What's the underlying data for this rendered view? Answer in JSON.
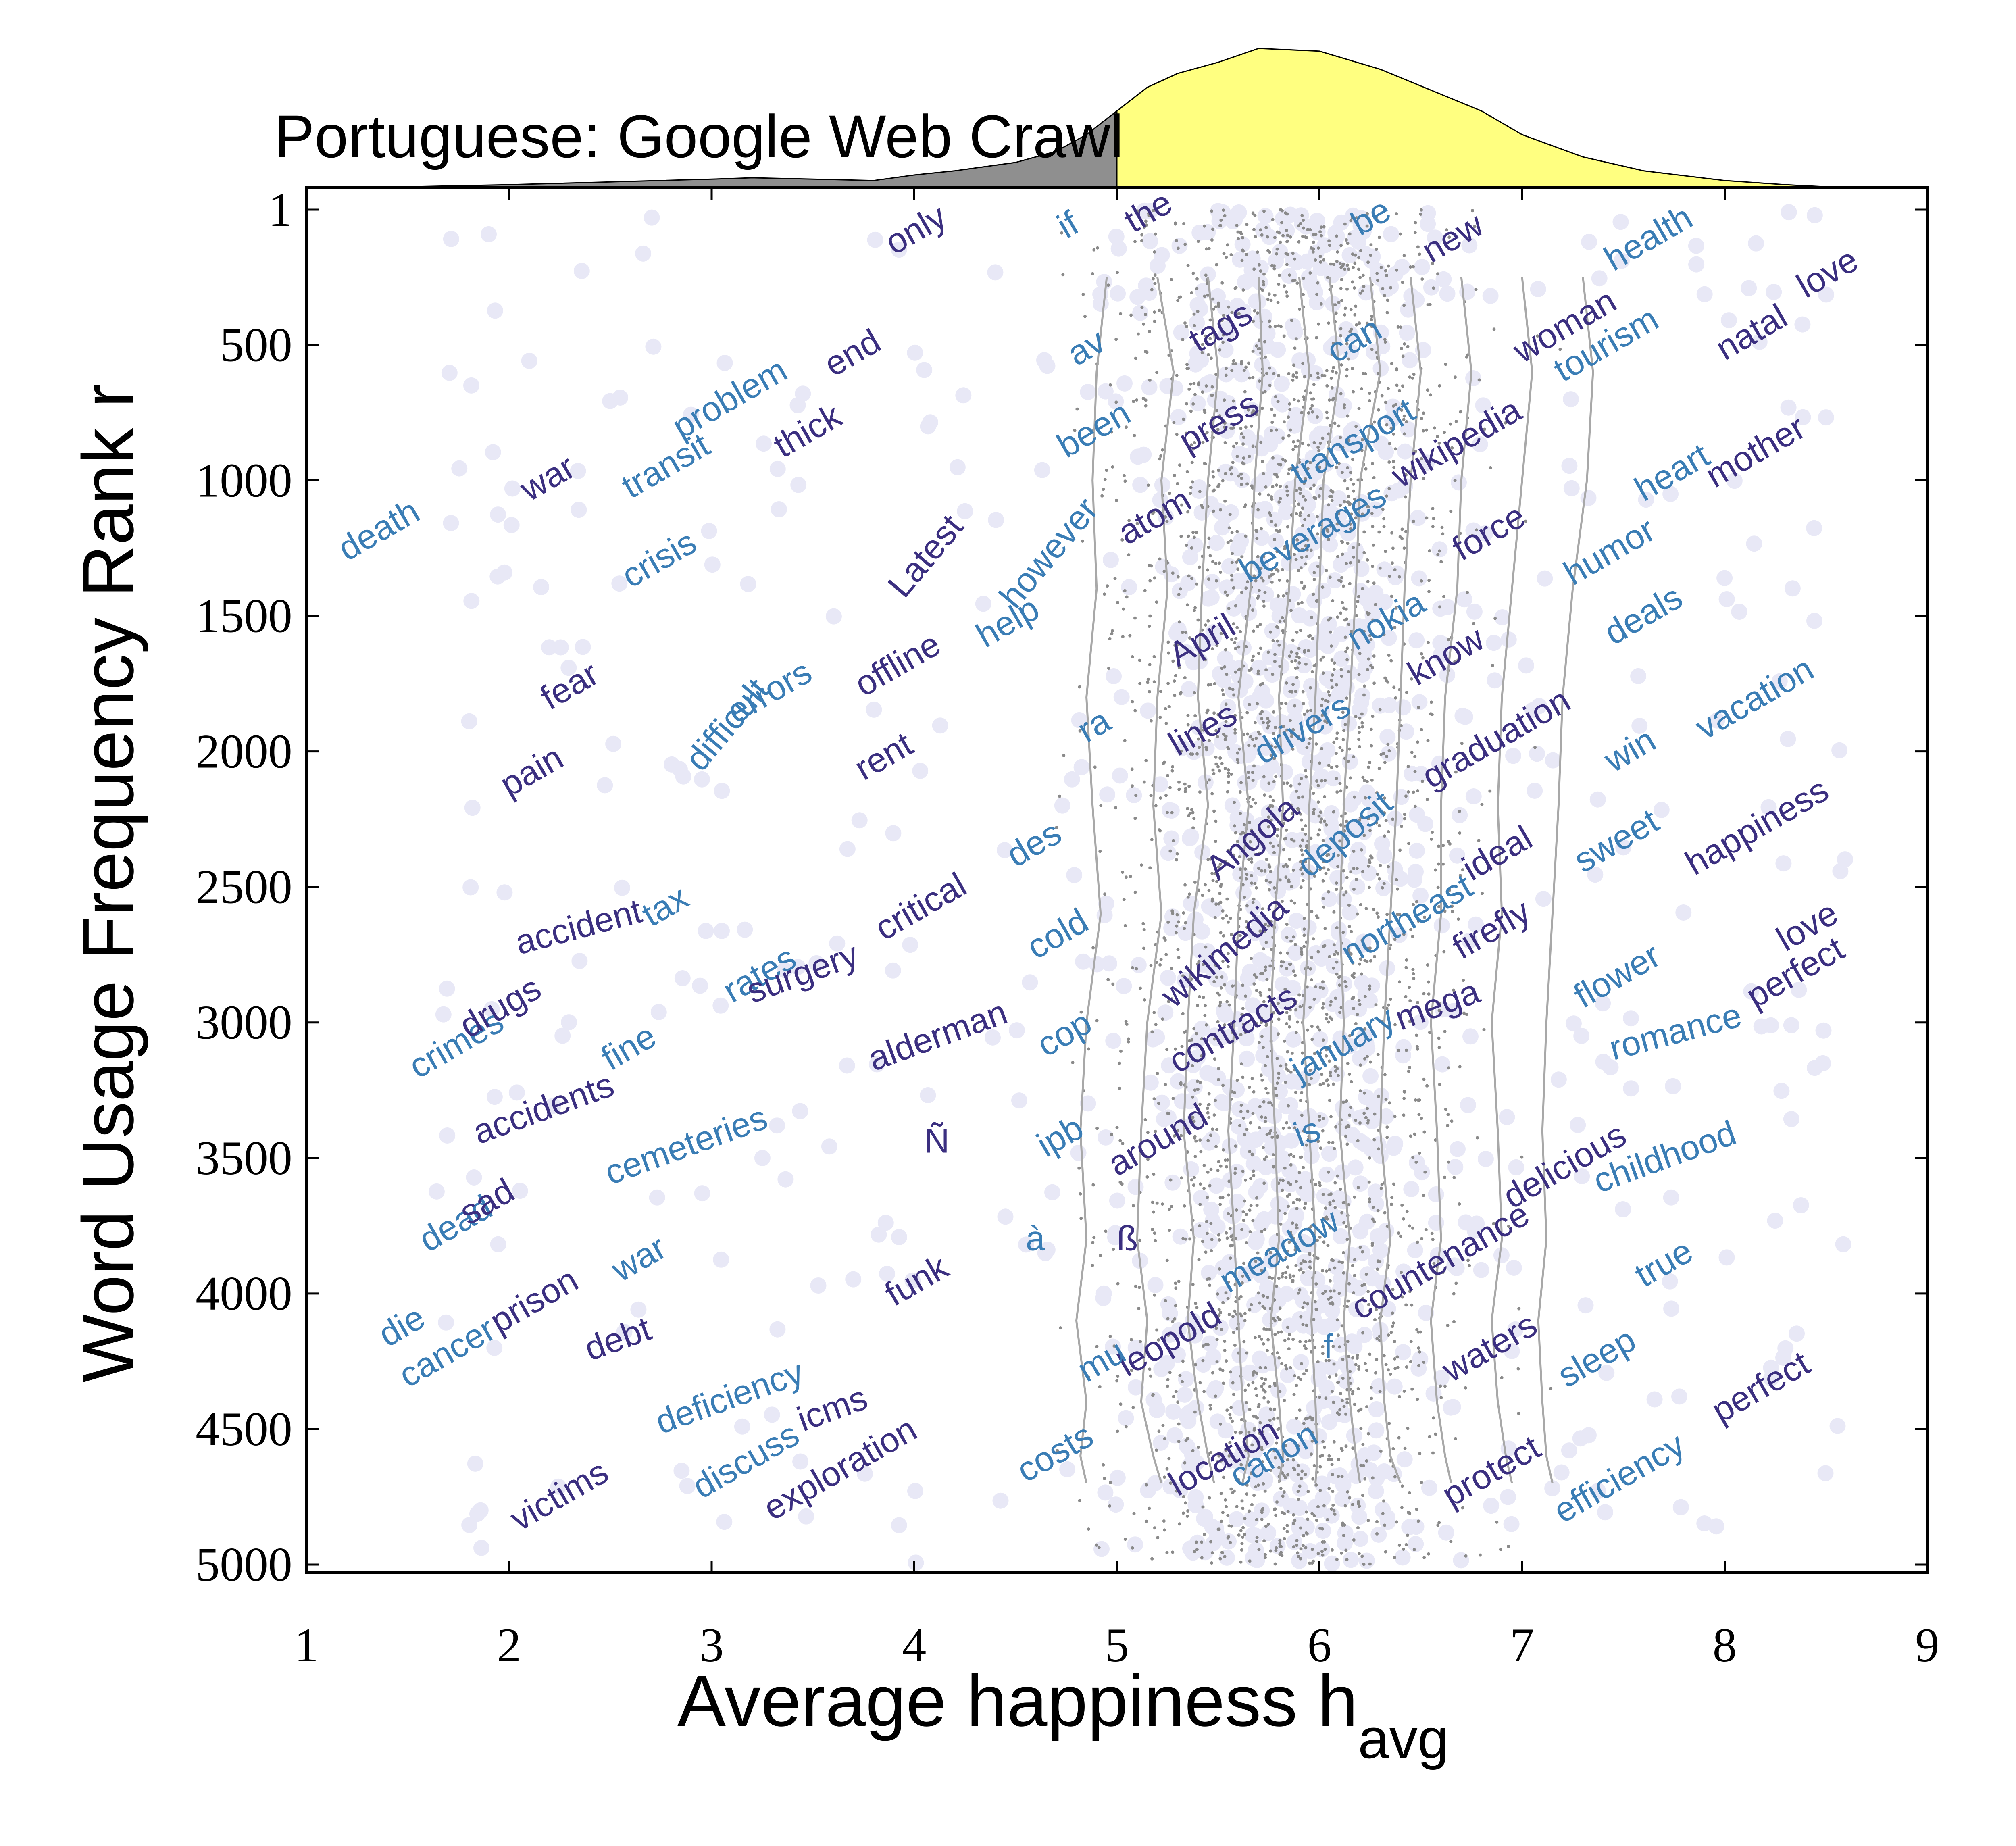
{
  "chart_data": {
    "type": "scatter",
    "title": "Portuguese: Google Web Crawl",
    "xlabel": "Average happiness h",
    "xlabel_sub": "avg",
    "ylabel": "Word Usage Frequency Rank r",
    "xlim": [
      1,
      9
    ],
    "ylim": [
      5000,
      1
    ],
    "x_ticks": [
      1,
      2,
      3,
      4,
      5,
      6,
      7,
      8,
      9
    ],
    "y_ticks": [
      1,
      500,
      1000,
      1500,
      2000,
      2500,
      3000,
      3500,
      4000,
      4500,
      5000
    ],
    "grid": false,
    "colors": {
      "dot": "#e8e8f6",
      "speck": "#8a8a8a",
      "contour": "#a8a8a8",
      "word_dark": "#3b2f80",
      "word_light": "#3a7db5",
      "hist_negative": "#8f8f8f",
      "hist_positive": "#ffff80"
    },
    "histogram": {
      "split_at": 5,
      "x": [
        1,
        1.5,
        2,
        2.5,
        3,
        3.2,
        3.5,
        3.8,
        4,
        4.2,
        4.5,
        4.7,
        4.85,
        5,
        5.15,
        5.3,
        5.5,
        5.7,
        6,
        6.3,
        6.5,
        6.8,
        7,
        7.3,
        7.6,
        8,
        8.3,
        8.5,
        9
      ],
      "density": [
        0,
        0.005,
        0.02,
        0.04,
        0.06,
        0.07,
        0.06,
        0.05,
        0.09,
        0.12,
        0.18,
        0.26,
        0.38,
        0.55,
        0.72,
        0.82,
        0.9,
        1.0,
        0.98,
        0.85,
        0.73,
        0.55,
        0.38,
        0.22,
        0.12,
        0.05,
        0.02,
        0.005,
        0
      ]
    },
    "contours_x": [
      [
        4.95,
        4.9,
        4.88,
        4.9,
        4.85,
        4.88,
        4.92,
        4.85,
        4.82,
        4.85,
        4.8,
        4.85,
        4.82,
        4.85
      ],
      [
        5.2,
        5.28,
        5.22,
        5.25,
        5.2,
        5.18,
        5.22,
        5.15,
        5.12,
        5.1,
        5.15,
        5.12,
        5.18,
        5.22
      ],
      [
        5.45,
        5.5,
        5.45,
        5.42,
        5.4,
        5.45,
        5.38,
        5.35,
        5.33,
        5.38,
        5.35,
        5.4,
        5.45,
        5.48
      ],
      [
        5.7,
        5.72,
        5.68,
        5.66,
        5.6,
        5.65,
        5.6,
        5.58,
        5.55,
        5.58,
        5.6,
        5.62,
        5.65,
        5.62
      ],
      [
        5.9,
        5.95,
        5.88,
        5.85,
        5.8,
        5.82,
        5.78,
        5.76,
        5.78,
        5.8,
        5.76,
        5.8,
        5.82,
        5.8
      ],
      [
        6.05,
        6.1,
        6.02,
        6.0,
        5.98,
        5.95,
        5.95,
        5.92,
        5.95,
        5.98,
        5.96,
        5.98,
        5.99,
        5.98
      ],
      [
        6.25,
        6.3,
        6.2,
        6.18,
        6.15,
        6.12,
        6.1,
        6.12,
        6.1,
        6.15,
        6.12,
        6.15,
        6.18,
        6.2
      ],
      [
        6.45,
        6.5,
        6.45,
        6.42,
        6.4,
        6.38,
        6.35,
        6.32,
        6.3,
        6.35,
        6.3,
        6.32,
        6.35,
        6.4
      ],
      [
        6.7,
        6.75,
        6.7,
        6.68,
        6.62,
        6.6,
        6.6,
        6.55,
        6.58,
        6.6,
        6.55,
        6.58,
        6.62,
        6.65
      ],
      [
        7.0,
        7.05,
        7.0,
        6.95,
        6.9,
        6.88,
        6.9,
        6.85,
        6.88,
        6.9,
        6.85,
        6.88,
        6.92,
        6.95
      ],
      [
        7.3,
        7.35,
        7.32,
        7.25,
        7.2,
        7.18,
        7.15,
        7.12,
        7.1,
        7.12,
        7.08,
        7.1,
        7.12,
        7.15
      ]
    ],
    "contour_ranks": [
      250,
      600,
      1000,
      1400,
      1800,
      2200,
      2600,
      3000,
      3400,
      3800,
      4100,
      4400,
      4600,
      4700
    ],
    "words": [
      {
        "text": "death",
        "x": 1.2,
        "y": 1300,
        "angle": -30,
        "tone": "light"
      },
      {
        "text": "war",
        "x": 2.1,
        "y": 1080,
        "angle": -30,
        "tone": "dark"
      },
      {
        "text": "transit",
        "x": 2.6,
        "y": 1070,
        "angle": -30,
        "tone": "light"
      },
      {
        "text": "problem",
        "x": 2.85,
        "y": 850,
        "angle": -30,
        "tone": "light"
      },
      {
        "text": "thick",
        "x": 3.35,
        "y": 920,
        "angle": -30,
        "tone": "dark"
      },
      {
        "text": "end",
        "x": 3.6,
        "y": 620,
        "angle": -30,
        "tone": "dark"
      },
      {
        "text": "only",
        "x": 3.9,
        "y": 170,
        "angle": -30,
        "tone": "dark"
      },
      {
        "text": "if",
        "x": 4.75,
        "y": 110,
        "angle": -30,
        "tone": "light"
      },
      {
        "text": "the",
        "x": 5.08,
        "y": 90,
        "angle": -30,
        "tone": "dark"
      },
      {
        "text": "be",
        "x": 6.2,
        "y": 100,
        "angle": -30,
        "tone": "light"
      },
      {
        "text": "new",
        "x": 6.55,
        "y": 200,
        "angle": -30,
        "tone": "dark"
      },
      {
        "text": "health",
        "x": 7.45,
        "y": 230,
        "angle": -30,
        "tone": "light"
      },
      {
        "text": "love",
        "x": 8.4,
        "y": 330,
        "angle": -30,
        "tone": "dark"
      },
      {
        "text": "natal",
        "x": 8.0,
        "y": 560,
        "angle": -30,
        "tone": "dark"
      },
      {
        "text": "crisis",
        "x": 2.6,
        "y": 1400,
        "angle": -30,
        "tone": "light"
      },
      {
        "text": "av",
        "x": 4.8,
        "y": 580,
        "angle": -30,
        "tone": "light"
      },
      {
        "text": "tags",
        "x": 5.4,
        "y": 530,
        "angle": -30,
        "tone": "dark"
      },
      {
        "text": "can",
        "x": 6.08,
        "y": 570,
        "angle": -30,
        "tone": "light"
      },
      {
        "text": "woman",
        "x": 7.0,
        "y": 570,
        "angle": -30,
        "tone": "dark"
      },
      {
        "text": "tourism",
        "x": 7.2,
        "y": 640,
        "angle": -30,
        "tone": "light"
      },
      {
        "text": "been",
        "x": 4.75,
        "y": 920,
        "angle": -30,
        "tone": "light"
      },
      {
        "text": "press",
        "x": 5.35,
        "y": 900,
        "angle": -30,
        "tone": "dark"
      },
      {
        "text": "transport",
        "x": 5.9,
        "y": 1020,
        "angle": -30,
        "tone": "light"
      },
      {
        "text": "wikipedia",
        "x": 6.4,
        "y": 1030,
        "angle": -30,
        "tone": "dark"
      },
      {
        "text": "mother",
        "x": 7.95,
        "y": 1030,
        "angle": -30,
        "tone": "dark"
      },
      {
        "text": "heart",
        "x": 7.6,
        "y": 1080,
        "angle": -30,
        "tone": "light"
      },
      {
        "text": "Latest",
        "x": 3.95,
        "y": 1440,
        "angle": -50,
        "tone": "dark"
      },
      {
        "text": "however",
        "x": 4.5,
        "y": 1480,
        "angle": -50,
        "tone": "light"
      },
      {
        "text": "atom",
        "x": 5.05,
        "y": 1240,
        "angle": -30,
        "tone": "dark"
      },
      {
        "text": "beverages",
        "x": 5.65,
        "y": 1380,
        "angle": -30,
        "tone": "light"
      },
      {
        "text": "force",
        "x": 6.7,
        "y": 1300,
        "angle": -30,
        "tone": "dark"
      },
      {
        "text": "humor",
        "x": 7.25,
        "y": 1390,
        "angle": -30,
        "tone": "light"
      },
      {
        "text": "fear",
        "x": 2.2,
        "y": 1850,
        "angle": -30,
        "tone": "dark"
      },
      {
        "text": "offline",
        "x": 3.75,
        "y": 1800,
        "angle": -30,
        "tone": "dark"
      },
      {
        "text": "help",
        "x": 4.35,
        "y": 1620,
        "angle": -30,
        "tone": "light"
      },
      {
        "text": "April",
        "x": 5.3,
        "y": 1690,
        "angle": -30,
        "tone": "dark"
      },
      {
        "text": "nokia",
        "x": 6.18,
        "y": 1630,
        "angle": -30,
        "tone": "light"
      },
      {
        "text": "know",
        "x": 6.48,
        "y": 1760,
        "angle": -30,
        "tone": "dark"
      },
      {
        "text": "deals",
        "x": 7.45,
        "y": 1610,
        "angle": -30,
        "tone": "light"
      },
      {
        "text": "vacation",
        "x": 7.9,
        "y": 1960,
        "angle": -30,
        "tone": "light"
      },
      {
        "text": "pain",
        "x": 2.0,
        "y": 2170,
        "angle": -30,
        "tone": "dark"
      },
      {
        "text": "difficult",
        "x": 2.95,
        "y": 2080,
        "angle": -50,
        "tone": "light"
      },
      {
        "text": "errors",
        "x": 3.12,
        "y": 1900,
        "angle": -30,
        "tone": "light"
      },
      {
        "text": "rent",
        "x": 3.75,
        "y": 2110,
        "angle": -30,
        "tone": "dark"
      },
      {
        "text": "ra",
        "x": 4.85,
        "y": 1970,
        "angle": -30,
        "tone": "light"
      },
      {
        "text": "lines",
        "x": 5.3,
        "y": 2020,
        "angle": -30,
        "tone": "dark"
      },
      {
        "text": "drivers",
        "x": 5.72,
        "y": 2050,
        "angle": -30,
        "tone": "light"
      },
      {
        "text": "graduation",
        "x": 6.55,
        "y": 2140,
        "angle": -30,
        "tone": "dark"
      },
      {
        "text": "win",
        "x": 7.45,
        "y": 2080,
        "angle": -30,
        "tone": "light"
      },
      {
        "text": "happiness",
        "x": 7.85,
        "y": 2460,
        "angle": -30,
        "tone": "dark"
      },
      {
        "text": "des",
        "x": 4.5,
        "y": 2430,
        "angle": -30,
        "tone": "light"
      },
      {
        "text": "Angola",
        "x": 5.5,
        "y": 2480,
        "angle": -40,
        "tone": "dark"
      },
      {
        "text": "deposit",
        "x": 5.95,
        "y": 2470,
        "angle": -40,
        "tone": "light"
      },
      {
        "text": "ideal",
        "x": 6.75,
        "y": 2480,
        "angle": -30,
        "tone": "dark"
      },
      {
        "text": "sweet",
        "x": 7.3,
        "y": 2450,
        "angle": -30,
        "tone": "light"
      },
      {
        "text": "accident",
        "x": 2.05,
        "y": 2750,
        "angle": -15,
        "tone": "dark"
      },
      {
        "text": "tax",
        "x": 2.7,
        "y": 2650,
        "angle": -30,
        "tone": "light"
      },
      {
        "text": "critical",
        "x": 3.85,
        "y": 2700,
        "angle": -30,
        "tone": "dark"
      },
      {
        "text": "cold",
        "x": 4.6,
        "y": 2770,
        "angle": -30,
        "tone": "light"
      },
      {
        "text": "wikimedia",
        "x": 5.28,
        "y": 2950,
        "angle": -40,
        "tone": "dark"
      },
      {
        "text": "northeast",
        "x": 6.15,
        "y": 2790,
        "angle": -30,
        "tone": "light"
      },
      {
        "text": "firefly",
        "x": 6.7,
        "y": 2770,
        "angle": -30,
        "tone": "dark"
      },
      {
        "text": "flower",
        "x": 7.3,
        "y": 2950,
        "angle": -30,
        "tone": "light"
      },
      {
        "text": "love",
        "x": 8.3,
        "y": 2740,
        "angle": -30,
        "tone": "dark"
      },
      {
        "text": "perfect",
        "x": 8.15,
        "y": 2950,
        "angle": -30,
        "tone": "dark"
      },
      {
        "text": "crimes",
        "x": 1.55,
        "y": 3210,
        "angle": -30,
        "tone": "light"
      },
      {
        "text": "drugs",
        "x": 1.8,
        "y": 3060,
        "angle": -30,
        "tone": "dark"
      },
      {
        "text": "rates",
        "x": 3.1,
        "y": 2930,
        "angle": -30,
        "tone": "light"
      },
      {
        "text": "surgery",
        "x": 3.2,
        "y": 2930,
        "angle": -20,
        "tone": "dark"
      },
      {
        "text": "alderman",
        "x": 3.8,
        "y": 3180,
        "angle": -20,
        "tone": "dark"
      },
      {
        "text": "cop",
        "x": 4.65,
        "y": 3130,
        "angle": -30,
        "tone": "light"
      },
      {
        "text": "contracts",
        "x": 5.3,
        "y": 3190,
        "angle": -30,
        "tone": "dark"
      },
      {
        "text": "january",
        "x": 5.9,
        "y": 3220,
        "angle": -30,
        "tone": "light"
      },
      {
        "text": "mega",
        "x": 6.4,
        "y": 3030,
        "angle": -20,
        "tone": "dark"
      },
      {
        "text": "romance",
        "x": 7.45,
        "y": 3140,
        "angle": -15,
        "tone": "light"
      },
      {
        "text": "accidents",
        "x": 1.85,
        "y": 3450,
        "angle": -20,
        "tone": "dark"
      },
      {
        "text": "fine",
        "x": 2.5,
        "y": 3180,
        "angle": -30,
        "tone": "light"
      },
      {
        "text": "Ñ",
        "x": 4.05,
        "y": 3480,
        "angle": 0,
        "tone": "dark"
      },
      {
        "text": "ipb",
        "x": 4.65,
        "y": 3500,
        "angle": -30,
        "tone": "light"
      },
      {
        "text": "around",
        "x": 5.0,
        "y": 3570,
        "angle": -30,
        "tone": "dark"
      },
      {
        "text": "is",
        "x": 5.9,
        "y": 3460,
        "angle": -20,
        "tone": "light"
      },
      {
        "text": "delicious",
        "x": 6.95,
        "y": 3690,
        "angle": -30,
        "tone": "dark"
      },
      {
        "text": "childhood",
        "x": 7.38,
        "y": 3630,
        "angle": -20,
        "tone": "light"
      },
      {
        "text": "dead",
        "x": 1.6,
        "y": 3850,
        "angle": -30,
        "tone": "light"
      },
      {
        "text": "sad",
        "x": 1.8,
        "y": 3750,
        "angle": -30,
        "tone": "dark"
      },
      {
        "text": "cemeteries",
        "x": 2.5,
        "y": 3600,
        "angle": -20,
        "tone": "light"
      },
      {
        "text": "countenance",
        "x": 6.2,
        "y": 4100,
        "angle": -30,
        "tone": "dark"
      },
      {
        "text": "meadow",
        "x": 5.55,
        "y": 4000,
        "angle": -30,
        "tone": "light"
      },
      {
        "text": "die",
        "x": 1.4,
        "y": 4200,
        "angle": -30,
        "tone": "light"
      },
      {
        "text": "cancer",
        "x": 1.5,
        "y": 4350,
        "angle": -30,
        "tone": "light"
      },
      {
        "text": "prison",
        "x": 1.95,
        "y": 4150,
        "angle": -30,
        "tone": "dark"
      },
      {
        "text": "war",
        "x": 2.55,
        "y": 3960,
        "angle": -30,
        "tone": "light"
      },
      {
        "text": "funk",
        "x": 3.9,
        "y": 4050,
        "angle": -30,
        "tone": "dark"
      },
      {
        "text": "à",
        "x": 4.55,
        "y": 3840,
        "angle": 0,
        "tone": "light"
      },
      {
        "text": "ß",
        "x": 5.0,
        "y": 3840,
        "angle": 0,
        "tone": "dark"
      },
      {
        "text": "true",
        "x": 7.6,
        "y": 3980,
        "angle": -30,
        "tone": "light"
      },
      {
        "text": "debt",
        "x": 2.4,
        "y": 4250,
        "angle": -20,
        "tone": "dark"
      },
      {
        "text": "leopold",
        "x": 5.05,
        "y": 4310,
        "angle": -30,
        "tone": "dark"
      },
      {
        "text": "mu",
        "x": 4.85,
        "y": 4330,
        "angle": -30,
        "tone": "light"
      },
      {
        "text": "f",
        "x": 6.02,
        "y": 4240,
        "angle": 0,
        "tone": "light"
      },
      {
        "text": "waters",
        "x": 6.65,
        "y": 4330,
        "angle": -30,
        "tone": "dark"
      },
      {
        "text": "sleep",
        "x": 7.22,
        "y": 4350,
        "angle": -30,
        "tone": "light"
      },
      {
        "text": "perfect",
        "x": 7.98,
        "y": 4480,
        "angle": -30,
        "tone": "dark"
      },
      {
        "text": "deficiency",
        "x": 2.75,
        "y": 4520,
        "angle": -20,
        "tone": "light"
      },
      {
        "text": "icms",
        "x": 3.45,
        "y": 4510,
        "angle": -20,
        "tone": "dark"
      },
      {
        "text": "costs",
        "x": 4.55,
        "y": 4700,
        "angle": -30,
        "tone": "light"
      },
      {
        "text": "location",
        "x": 5.3,
        "y": 4750,
        "angle": -30,
        "tone": "dark"
      },
      {
        "text": "canon",
        "x": 5.6,
        "y": 4720,
        "angle": -30,
        "tone": "light"
      },
      {
        "text": "protect",
        "x": 6.65,
        "y": 4790,
        "angle": -30,
        "tone": "dark"
      },
      {
        "text": "efficiency",
        "x": 7.2,
        "y": 4850,
        "angle": -30,
        "tone": "light"
      },
      {
        "text": "victims",
        "x": 2.05,
        "y": 4880,
        "angle": -30,
        "tone": "dark"
      },
      {
        "text": "discuss",
        "x": 2.95,
        "y": 4760,
        "angle": -30,
        "tone": "light"
      },
      {
        "text": "exploration",
        "x": 3.3,
        "y": 4840,
        "angle": -30,
        "tone": "dark"
      }
    ]
  }
}
